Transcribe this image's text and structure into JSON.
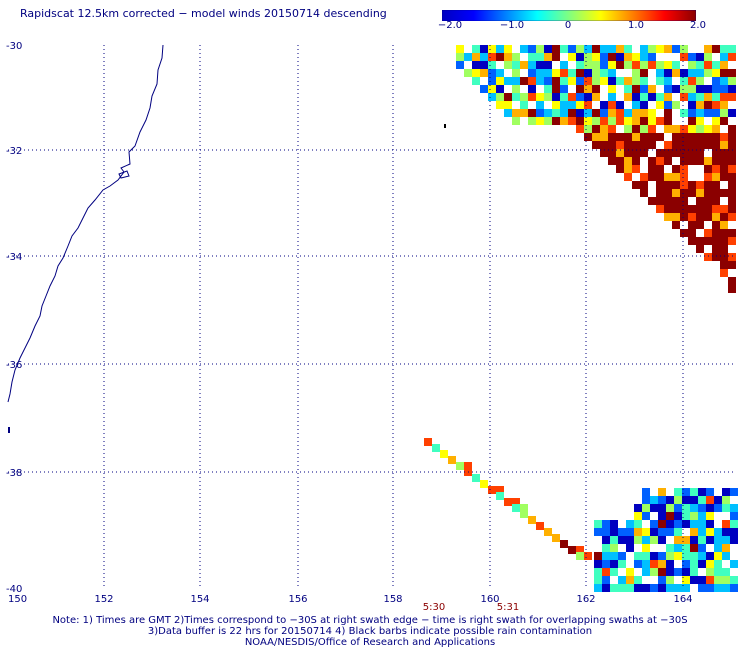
{
  "title": "Rapidscat 12.5km corrected − model winds 20150714 descending",
  "colorbar": {
    "labels": [
      "−2.0",
      "−1.0",
      "0",
      "1.0",
      "2.0"
    ],
    "stops": [
      "#0000c0",
      "#0000ff",
      "#0080ff",
      "#00ffff",
      "#80ff80",
      "#ffff00",
      "#ff8000",
      "#ff0000",
      "#8b0000"
    ]
  },
  "map": {
    "lon_ticks": [
      "150",
      "152",
      "154",
      "156",
      "158",
      "160",
      "162",
      "164"
    ],
    "lat_ticks": [
      "-30",
      "-32",
      "-34",
      "-36",
      "-38",
      "-40"
    ],
    "swath_times": [
      "5:30",
      "5:31"
    ]
  },
  "notes": [
    "Note: 1) Times are GMT 2)Times correspond to −30S at right swath edge − time is right swath for overlapping swaths at −30S",
    "3)Data buffer is 22 hrs for 20150714 4) Black barbs indicate possible rain contamination",
    "NOAA/NESDIS/Office of Research and Applications"
  ]
}
